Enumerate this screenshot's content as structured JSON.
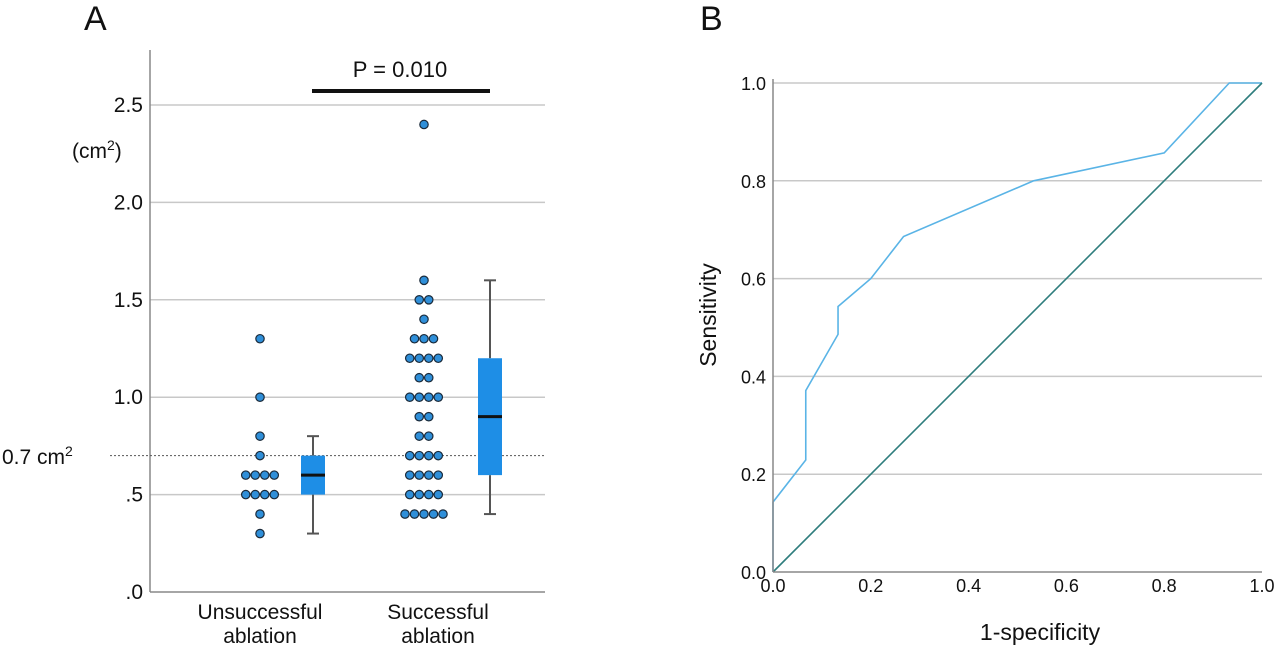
{
  "chart_data": [
    {
      "panel": "A",
      "type": "scatter",
      "subtype": "dot plot with box plots",
      "unit_label": "(cm2)",
      "unit_base": "(cm",
      "unit_sup": "2",
      "unit_close": ")",
      "ylim": [
        0,
        2.75
      ],
      "yticks": [
        0,
        0.5,
        1.0,
        1.5,
        2.0,
        2.5
      ],
      "ytick_labels": [
        ".0",
        ".5",
        "1.0",
        "1.5",
        "2.0",
        "2.5"
      ],
      "grid": true,
      "categories": [
        {
          "line1": "Unsuccessful",
          "line2": "ablation"
        },
        {
          "line1": "Successful",
          "line2": "ablation"
        }
      ],
      "series": [
        {
          "points": [
            0.3,
            0.4,
            0.5,
            0.5,
            0.5,
            0.5,
            0.6,
            0.6,
            0.6,
            0.6,
            0.7,
            0.8,
            1.0,
            1.3
          ],
          "box": {
            "whisker_low": 0.3,
            "q1": 0.5,
            "median": 0.6,
            "q3": 0.7,
            "whisker_high": 0.8
          }
        },
        {
          "points": [
            0.4,
            0.4,
            0.4,
            0.4,
            0.4,
            0.5,
            0.5,
            0.5,
            0.5,
            0.6,
            0.6,
            0.6,
            0.6,
            0.7,
            0.7,
            0.7,
            0.7,
            0.8,
            0.8,
            0.9,
            0.9,
            1.0,
            1.0,
            1.0,
            1.0,
            1.1,
            1.1,
            1.2,
            1.2,
            1.2,
            1.2,
            1.3,
            1.3,
            1.3,
            1.4,
            1.5,
            1.5,
            1.6,
            2.4
          ],
          "box": {
            "whisker_low": 0.4,
            "q1": 0.6,
            "median": 0.9,
            "q3": 1.2,
            "whisker_high": 1.6
          }
        }
      ],
      "reference_line": {
        "value": 0.7,
        "label": "0.7 cm",
        "label_sup": "2"
      },
      "significance": {
        "text": "P = 0.010"
      },
      "colors": {
        "point": "#2f8fd9",
        "box": "#1e8ee6",
        "median": "#111111",
        "whisker": "#555555",
        "grid": "#c8c8c8",
        "axis": "#888888"
      }
    },
    {
      "panel": "B",
      "type": "line",
      "subtype": "ROC curve",
      "xlabel": "1-specificity",
      "ylabel": "Sensitivity",
      "xlim": [
        0,
        1
      ],
      "ylim": [
        0,
        1
      ],
      "xticks": [
        0,
        0.2,
        0.4,
        0.6,
        0.8,
        1.0
      ],
      "xtick_labels": [
        "0.0",
        "0.2",
        "0.4",
        "0.6",
        "0.8",
        "1.0"
      ],
      "yticks": [
        0,
        0.2,
        0.4,
        0.6,
        0.8,
        1.0
      ],
      "ytick_labels": [
        "0.0",
        "0.2",
        "0.4",
        "0.6",
        "0.8",
        "1.0"
      ],
      "grid": true,
      "series": [
        {
          "x": [
            0,
            0,
            0.067,
            0.067,
            0.133,
            0.133,
            0.2,
            0.267,
            0.533,
            0.8,
            0.933,
            1.0
          ],
          "y": [
            0,
            0.143,
            0.229,
            0.371,
            0.486,
            0.543,
            0.6,
            0.686,
            0.8,
            0.857,
            1.0,
            1.0
          ],
          "color": "#5ab4e6"
        },
        {
          "x": [
            0,
            1
          ],
          "y": [
            0,
            1
          ],
          "color": "#2e7d7d"
        }
      ]
    }
  ]
}
